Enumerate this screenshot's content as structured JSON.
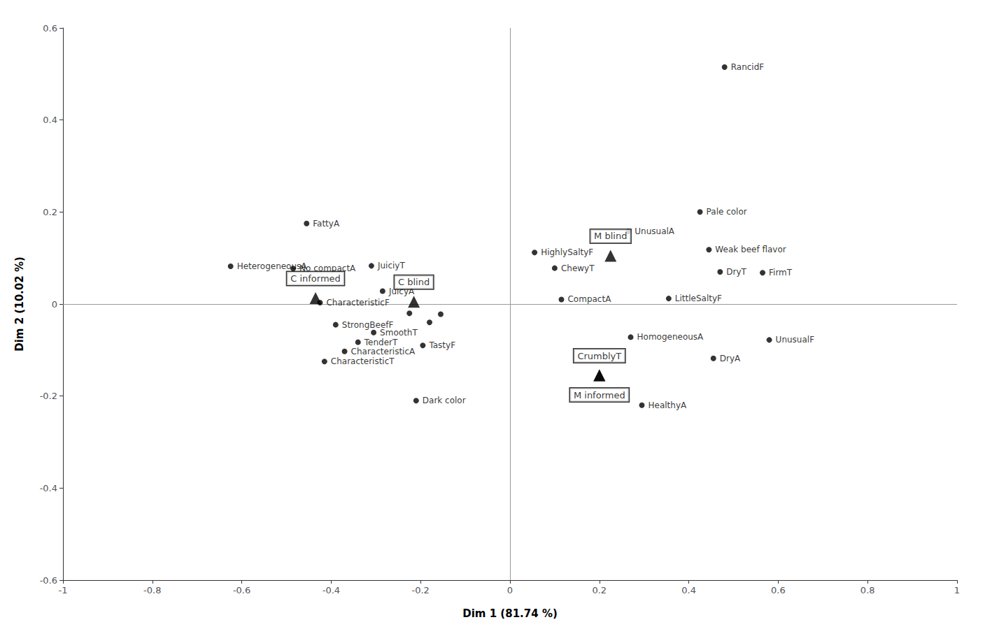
{
  "chart_data": {
    "type": "scatter",
    "xlabel": "Dim 1 (81.74 %)",
    "ylabel": "Dim 2 (10.02 %)",
    "xlim": [
      -1,
      1
    ],
    "ylim": [
      -0.6,
      0.6
    ],
    "xticks": [
      -1,
      -0.8,
      -0.6,
      -0.4,
      -0.2,
      0,
      0.2,
      0.4,
      0.6,
      0.8,
      1
    ],
    "yticks": [
      -0.6,
      -0.4,
      -0.2,
      0,
      0.2,
      0.4,
      0.6
    ],
    "grid": false,
    "series": [
      {
        "marker": "circle",
        "color": "black",
        "x": [
          -0.455,
          -0.625,
          -0.485,
          -0.31,
          -0.285,
          -0.425,
          -0.39,
          -0.305,
          -0.34,
          -0.37,
          -0.415,
          -0.21,
          -0.195,
          -0.18,
          -0.225,
          -0.155,
          0.48,
          0.425,
          0.265,
          0.445,
          0.055,
          0.1,
          0.47,
          0.565,
          0.115,
          0.355,
          0.27,
          0.58,
          0.455,
          0.295
        ],
        "values": [
          0.175,
          0.082,
          0.077,
          0.083,
          0.028,
          0.003,
          -0.045,
          -0.062,
          -0.083,
          -0.103,
          -0.125,
          -0.21,
          -0.09,
          -0.04,
          -0.02,
          -0.022,
          0.515,
          0.2,
          0.158,
          0.118,
          0.112,
          0.078,
          0.07,
          0.068,
          0.01,
          0.012,
          -0.072,
          -0.078,
          -0.118,
          -0.22
        ],
        "labels": [
          "FattyA",
          "HeterogeneousA",
          "No compactA",
          "JuiciyT",
          "JuicyA",
          "CharacteristicF",
          "StrongBeefF",
          "SmoothT",
          "TenderT",
          "CharacteristicA",
          "CharacteristicT",
          "Dark color",
          "TastyF",
          null,
          null,
          null,
          "RancidF",
          "Pale color",
          "UnusualA",
          "Weak beef flavor",
          "HighlySaltyF",
          "ChewyT",
          "DryT",
          "FirmT",
          "CompactA",
          "LittleSaltyF",
          "HomogeneousA",
          "UnusualF",
          "DryA",
          "HealthyA"
        ]
      },
      {
        "marker": "triangle",
        "color": "black",
        "x": [
          -0.435,
          -0.215,
          0.225,
          0.2,
          0.2
        ],
        "values": [
          0.013,
          0.005,
          0.105,
          -0.155,
          -0.155
        ],
        "labels": [
          "C informed",
          "C blind",
          "M blind",
          "CrumblyT",
          "M informed"
        ]
      }
    ]
  }
}
